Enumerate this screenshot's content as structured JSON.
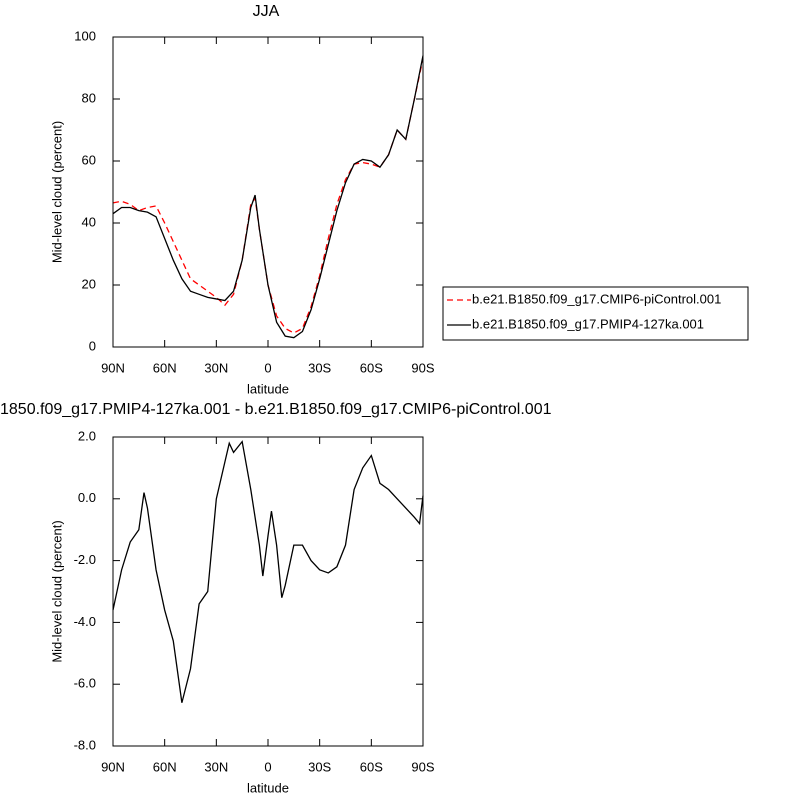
{
  "chart_data": [
    {
      "type": "line",
      "title": "JJA",
      "xlabel": "latitude",
      "ylabel": "Mid-level cloud (percent)",
      "x": [
        90,
        85,
        80,
        75,
        70,
        65,
        60,
        55,
        50,
        45,
        40,
        35,
        30,
        25,
        20,
        15,
        10,
        7.5,
        5,
        0,
        -5,
        -10,
        -15,
        -20,
        -25,
        -30,
        -35,
        -40,
        -45,
        -50,
        -55,
        -60,
        -65,
        -70,
        -75,
        -80,
        -85,
        -90
      ],
      "series": [
        {
          "name": "b.e21.B1850.f09_g17.CMIP6-piControl.001",
          "color": "#ff0000",
          "dashed": true,
          "values": [
            46.5,
            47,
            46,
            44,
            45,
            45.5,
            40,
            34,
            28,
            22,
            20,
            18,
            16,
            13.5,
            17,
            28,
            46,
            48,
            38,
            20,
            10,
            6,
            4.5,
            6,
            13,
            23,
            35,
            46,
            54,
            59,
            59.5,
            59,
            58,
            62,
            70,
            67,
            80,
            93
          ]
        },
        {
          "name": "b.e21.B1850.f09_g17.PMIP4-127ka.001",
          "color": "#000000",
          "dashed": false,
          "values": [
            43,
            45,
            45,
            44,
            43.5,
            42,
            35,
            28,
            22,
            18,
            17,
            16,
            15.5,
            15,
            18,
            28,
            45,
            49,
            38,
            20,
            8,
            3.5,
            3,
            5,
            12,
            22,
            33,
            44,
            53,
            59,
            60.5,
            60,
            58,
            62,
            70,
            67,
            80,
            94
          ]
        }
      ],
      "xlim": [
        90,
        -90
      ],
      "xticks": [
        {
          "value": 90,
          "label": "90N"
        },
        {
          "value": 60,
          "label": "60N"
        },
        {
          "value": 30,
          "label": "30N"
        },
        0,
        {
          "value": -30,
          "label": "30S"
        },
        {
          "value": -60,
          "label": "60S"
        },
        {
          "value": -90,
          "label": "90S"
        }
      ],
      "ylim": [
        0,
        100
      ],
      "yticks": [
        0,
        20,
        40,
        60,
        80,
        100
      ],
      "legend": "right"
    },
    {
      "type": "line",
      "title": "1850.f09_g17.PMIP4-127ka.001 - b.e21.B1850.f09_g17.CMIP6-piControl.001",
      "xlabel": "latitude",
      "ylabel": "Mid-level cloud (percent)",
      "x": [
        90,
        85,
        80,
        75,
        72,
        70,
        65,
        60,
        55,
        50,
        45,
        40,
        35,
        30,
        25,
        22.5,
        20,
        15,
        10,
        5,
        3,
        0,
        -2,
        -5,
        -8,
        -10,
        -15,
        -20,
        -25,
        -30,
        -35,
        -40,
        -45,
        -50,
        -55,
        -60,
        -65,
        -70,
        -75,
        -80,
        -85,
        -88,
        -90
      ],
      "series": [
        {
          "color": "#000000",
          "values": [
            -3.6,
            -2.3,
            -1.4,
            -1.0,
            0.2,
            -0.3,
            -2.3,
            -3.6,
            -4.6,
            -6.6,
            -5.5,
            -3.4,
            -3.0,
            0.0,
            1.2,
            1.8,
            1.5,
            1.85,
            0.3,
            -1.5,
            -2.5,
            -1.2,
            -0.4,
            -1.5,
            -3.2,
            -2.8,
            -1.5,
            -1.5,
            -2.0,
            -2.3,
            -2.4,
            -2.2,
            -1.5,
            0.3,
            1.0,
            1.4,
            0.5,
            0.3,
            0.0,
            -0.3,
            -0.6,
            -0.8,
            0.1
          ]
        }
      ],
      "xlim": [
        90,
        -90
      ],
      "xticks": [
        {
          "value": 90,
          "label": "90N"
        },
        {
          "value": 60,
          "label": "60N"
        },
        {
          "value": 30,
          "label": "30N"
        },
        0,
        {
          "value": -30,
          "label": "30S"
        },
        {
          "value": -60,
          "label": "60S"
        },
        {
          "value": -90,
          "label": "90S"
        }
      ],
      "ylim": [
        -8,
        2
      ],
      "yticks": [
        {
          "value": -8,
          "label": "-8.0"
        },
        {
          "value": -6,
          "label": "-6.0"
        },
        {
          "value": -4,
          "label": "-4.0"
        },
        {
          "value": -2,
          "label": "-2.0"
        },
        {
          "value": 0,
          "label": "0.0"
        },
        {
          "value": 2,
          "label": "2.0"
        }
      ]
    }
  ]
}
